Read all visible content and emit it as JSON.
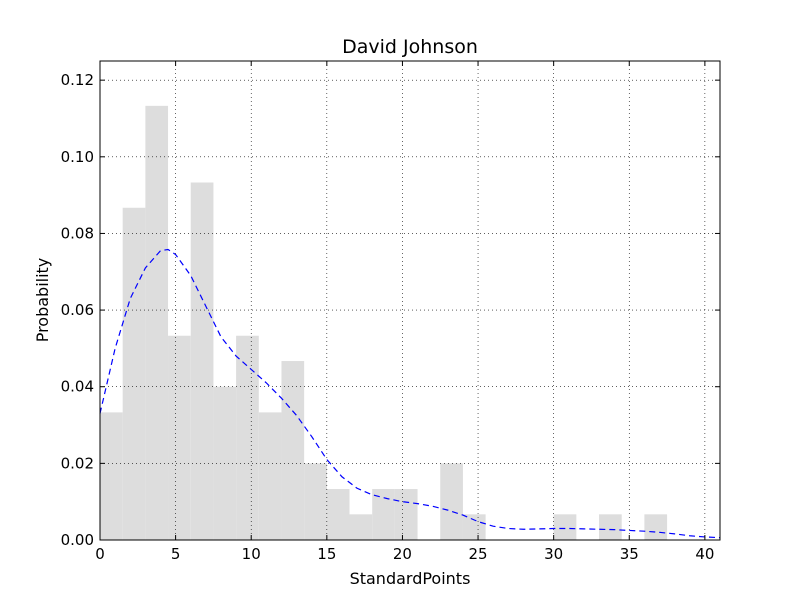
{
  "chart_data": {
    "type": "bar",
    "title": "David Johnson",
    "xlabel": "StandardPoints",
    "ylabel": "Probability",
    "xlim": [
      0,
      41
    ],
    "ylim": [
      0,
      0.125
    ],
    "xticks": [
      0,
      5,
      10,
      15,
      20,
      25,
      30,
      35,
      40
    ],
    "yticks": [
      0.0,
      0.02,
      0.04,
      0.06,
      0.08,
      0.1,
      0.12
    ],
    "xtick_labels": [
      "0",
      "5",
      "10",
      "15",
      "20",
      "25",
      "30",
      "35",
      "40"
    ],
    "ytick_labels": [
      "0.00",
      "0.02",
      "0.04",
      "0.06",
      "0.08",
      "0.10",
      "0.12"
    ],
    "grid": true,
    "bar_color": "#dddddd",
    "line_color": "#0000ff",
    "histogram": {
      "bin_edges": [
        0,
        1.5,
        3,
        4.5,
        6,
        7.5,
        9,
        10.5,
        12,
        13.5,
        15,
        16.5,
        18,
        19.5,
        21,
        22.5,
        24,
        25.5,
        27,
        28.5,
        30,
        31.5,
        33,
        34.5,
        36,
        37.5
      ],
      "values": [
        0.0333,
        0.0867,
        0.1133,
        0.0533,
        0.0933,
        0.04,
        0.0533,
        0.0333,
        0.0467,
        0.02,
        0.0133,
        0.0067,
        0.0133,
        0.0133,
        0,
        0.02,
        0.0067,
        0,
        0,
        0,
        0.0067,
        0,
        0.0067,
        0,
        0.0067
      ]
    },
    "density": {
      "style": "dashed",
      "x": [
        0,
        1,
        2,
        3,
        4,
        4.5,
        5,
        6,
        7,
        8,
        9,
        10,
        11,
        12,
        13,
        14,
        15,
        16,
        17,
        18,
        19,
        20,
        21,
        22,
        23,
        24,
        25,
        26,
        27,
        28,
        29,
        30,
        31,
        32,
        33,
        34,
        35,
        36,
        37,
        38,
        39,
        40,
        41
      ],
      "y": [
        0.033,
        0.05,
        0.063,
        0.071,
        0.0755,
        0.0758,
        0.0745,
        0.069,
        0.061,
        0.053,
        0.048,
        0.0445,
        0.041,
        0.037,
        0.0325,
        0.027,
        0.021,
        0.0165,
        0.0135,
        0.0118,
        0.0108,
        0.01,
        0.0095,
        0.0088,
        0.0078,
        0.0065,
        0.0048,
        0.0036,
        0.003,
        0.0028,
        0.0029,
        0.003,
        0.003,
        0.0029,
        0.0028,
        0.0027,
        0.0025,
        0.0023,
        0.002,
        0.0016,
        0.0011,
        0.0008,
        0.0006
      ]
    }
  }
}
